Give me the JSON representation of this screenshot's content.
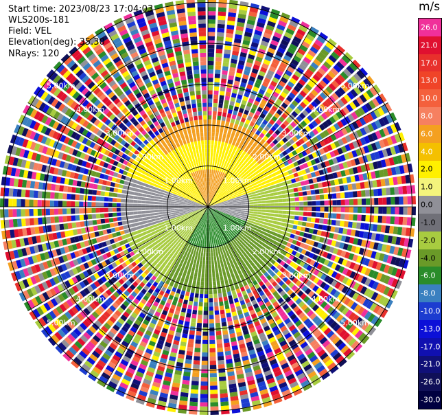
{
  "header": {
    "start_time": "Start time: 2023/08/23 17:04:03",
    "instrument": "WLS200s-181",
    "field": "Field: VEL",
    "elevation": "Elevation(deg): 35.30",
    "nrays": "NRays: 120"
  },
  "colorbar": {
    "title": "m/s",
    "ticks": [
      "26.0",
      "21.0",
      "17.0",
      "13.0",
      "10.0",
      "8.0",
      "6.0",
      "4.0",
      "2.0",
      "1.0",
      "0.0",
      "-1.0",
      "-2.0",
      "-4.0",
      "-6.0",
      "-8.0",
      "-10.0",
      "-13.0",
      "-17.0",
      "-21.0",
      "-26.0",
      "-30.0"
    ],
    "colors": [
      "#f0309a",
      "#e01030",
      "#e8302c",
      "#f04428",
      "#f4603c",
      "#f68060",
      "#f4a020",
      "#f4c000",
      "#fff000",
      "#f4f47c",
      "#909098",
      "#707078",
      "#a8cc40",
      "#6a9a28",
      "#2a8c2a",
      "#3a80c0",
      "#1c3cd0",
      "#0c10d8",
      "#1010b0",
      "#101078",
      "#101058",
      "#000040"
    ]
  },
  "range_labels": [
    "1.00km",
    "2.00km",
    "3.00km",
    "4.00km",
    "5.00km"
  ],
  "chart_data": {
    "type": "heatmap",
    "projection": "polar (PPI)",
    "field": "VEL",
    "units": "m/s",
    "nrays": 120,
    "range_rings_km": [
      1.0,
      2.0,
      3.0,
      4.0,
      5.0
    ],
    "color_scale": [
      -30.0,
      26.0
    ]
  }
}
